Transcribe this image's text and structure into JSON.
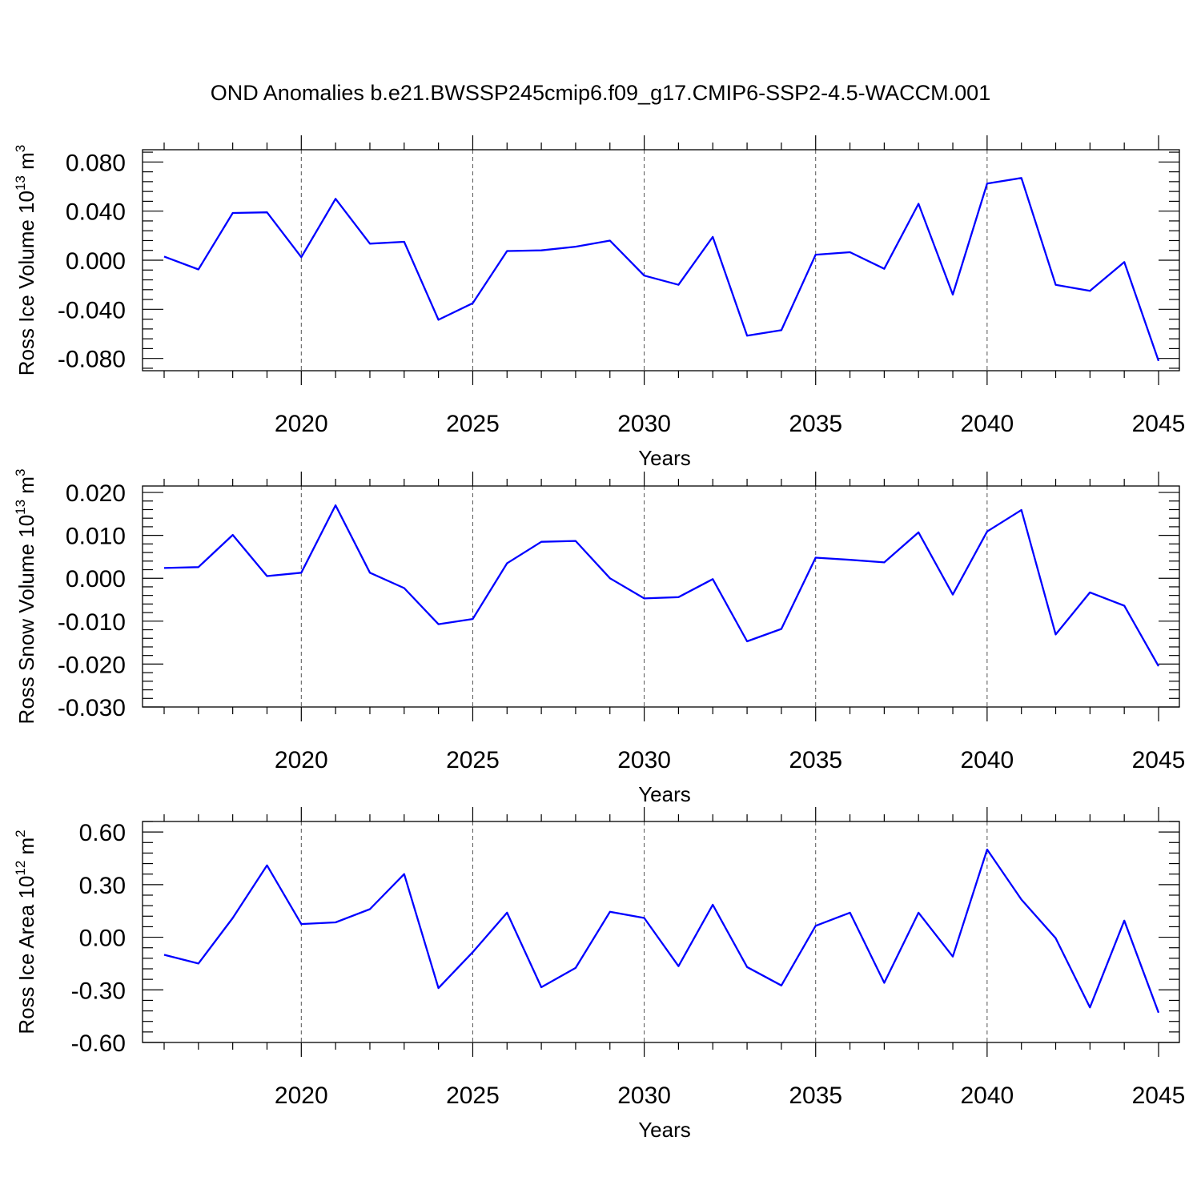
{
  "title": "OND Anomalies b.e21.BWSSP245cmip6.f09_g17.CMIP6-SSP2-4.5-WACCM.001",
  "colors": {
    "line": "#0000ff",
    "grid": "#555555",
    "axis": "#000000"
  },
  "chart_data": [
    {
      "type": "line",
      "ylabel": {
        "text": "Ross Ice Volume 10",
        "sup": "13",
        "unit": " m",
        "unit_sup": "3"
      },
      "xlabel": "Years",
      "xlim": [
        2016,
        2045
      ],
      "ylim": [
        -0.09,
        0.09
      ],
      "xticks": [
        2020,
        2025,
        2030,
        2035,
        2040,
        2045
      ],
      "xtick_labels": [
        "2020",
        "2025",
        "2030",
        "2035",
        "2040",
        "2045"
      ],
      "yticks": [
        -0.08,
        -0.04,
        0.0,
        0.04,
        0.08
      ],
      "ytick_labels": [
        "-0.080",
        "-0.040",
        "0.000",
        "0.040",
        "0.080"
      ],
      "grid": "dashed vertical at labeled years",
      "series": [
        {
          "x": [
            2016,
            2017,
            2018,
            2019,
            2020,
            2021,
            2022,
            2023,
            2024,
            2025,
            2026,
            2027,
            2028,
            2029,
            2030,
            2031,
            2032,
            2033,
            2034,
            2035,
            2036,
            2037,
            2038,
            2039,
            2040,
            2041,
            2042,
            2043,
            2044,
            2045
          ],
          "values": [
            0.003,
            -0.0075,
            0.0385,
            0.039,
            0.0025,
            0.05,
            0.0135,
            0.015,
            -0.0485,
            -0.035,
            0.0075,
            0.008,
            0.011,
            0.016,
            -0.0125,
            -0.02,
            0.019,
            -0.0615,
            -0.057,
            0.0045,
            0.0065,
            -0.007,
            0.046,
            -0.028,
            0.0625,
            0.067,
            -0.02,
            -0.025,
            -0.0015,
            -0.082
          ]
        }
      ]
    },
    {
      "type": "line",
      "ylabel": {
        "text": "Ross Snow Volume 10",
        "sup": "13",
        "unit": " m",
        "unit_sup": "3"
      },
      "xlabel": "Years",
      "xlim": [
        2016,
        2045
      ],
      "ylim": [
        -0.03,
        0.0215
      ],
      "xticks": [
        2020,
        2025,
        2030,
        2035,
        2040,
        2045
      ],
      "xtick_labels": [
        "2020",
        "2025",
        "2030",
        "2035",
        "2040",
        "2045"
      ],
      "yticks": [
        -0.03,
        -0.02,
        -0.01,
        0.0,
        0.01,
        0.02
      ],
      "ytick_labels": [
        "-0.030",
        "-0.020",
        "-0.010",
        "0.000",
        "0.010",
        "0.020"
      ],
      "grid": "dashed vertical at labeled years",
      "series": [
        {
          "x": [
            2016,
            2017,
            2018,
            2019,
            2020,
            2021,
            2022,
            2023,
            2024,
            2025,
            2026,
            2027,
            2028,
            2029,
            2030,
            2031,
            2032,
            2033,
            2034,
            2035,
            2036,
            2037,
            2038,
            2039,
            2040,
            2041,
            2042,
            2043,
            2044,
            2045
          ],
          "values": [
            0.0024,
            0.0026,
            0.0101,
            0.0005,
            0.0013,
            0.017,
            0.0013,
            -0.0023,
            -0.0107,
            -0.0095,
            0.0035,
            0.0085,
            0.0087,
            0.0,
            -0.0047,
            -0.0044,
            -0.0002,
            -0.0147,
            -0.0118,
            0.0048,
            0.0043,
            0.0037,
            0.0107,
            -0.0038,
            0.0109,
            0.0159,
            -0.0131,
            -0.0033,
            -0.0064,
            -0.0205
          ]
        }
      ]
    },
    {
      "type": "line",
      "ylabel": {
        "text": "Ross Ice Area 10",
        "sup": "12",
        "unit": " m",
        "unit_sup": "2"
      },
      "xlabel": "Years",
      "xlim": [
        2016,
        2045
      ],
      "ylim": [
        -0.6,
        0.66
      ],
      "xticks": [
        2020,
        2025,
        2030,
        2035,
        2040,
        2045
      ],
      "xtick_labels": [
        "2020",
        "2025",
        "2030",
        "2035",
        "2040",
        "2045"
      ],
      "yticks": [
        -0.6,
        -0.3,
        0.0,
        0.3,
        0.6
      ],
      "ytick_labels": [
        "-0.60",
        "-0.30",
        "0.00",
        "0.30",
        "0.60"
      ],
      "grid": "dashed vertical at labeled years",
      "series": [
        {
          "x": [
            2016,
            2017,
            2018,
            2019,
            2020,
            2021,
            2022,
            2023,
            2024,
            2025,
            2026,
            2027,
            2028,
            2029,
            2030,
            2031,
            2032,
            2033,
            2034,
            2035,
            2036,
            2037,
            2038,
            2039,
            2040,
            2041,
            2042,
            2043,
            2044,
            2045
          ],
          "values": [
            -0.1,
            -0.15,
            0.11,
            0.41,
            0.075,
            0.085,
            0.16,
            0.36,
            -0.29,
            -0.085,
            0.14,
            -0.285,
            -0.175,
            0.145,
            0.11,
            -0.165,
            0.185,
            -0.17,
            -0.275,
            0.065,
            0.14,
            -0.26,
            0.14,
            -0.11,
            0.5,
            0.215,
            -0.005,
            -0.4,
            0.095,
            -0.43
          ]
        }
      ]
    }
  ]
}
